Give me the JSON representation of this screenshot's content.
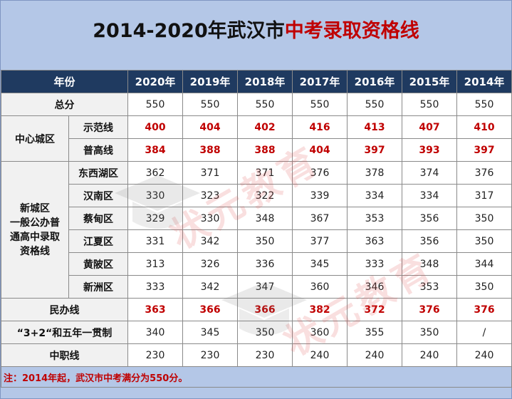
{
  "title": {
    "prefix": "2014-2020年武汉市",
    "highlight": "中考录取资格线"
  },
  "header": {
    "corner": "年份",
    "years": [
      "2020年",
      "2019年",
      "2018年",
      "2017年",
      "2016年",
      "2015年",
      "2014年"
    ]
  },
  "rows": {
    "total": {
      "label": "总分",
      "values": [
        "550",
        "550",
        "550",
        "550",
        "550",
        "550",
        "550"
      ]
    },
    "center_group_label": "中心城区",
    "center": [
      {
        "label": "示范线",
        "values": [
          "400",
          "404",
          "402",
          "416",
          "413",
          "407",
          "410"
        ]
      },
      {
        "label": "普高线",
        "values": [
          "384",
          "388",
          "388",
          "404",
          "397",
          "393",
          "397"
        ]
      }
    ],
    "new_group_label_lines": [
      "新城区",
      "一般公办普",
      "通高中录取",
      "资格线"
    ],
    "new": [
      {
        "label": "东西湖区",
        "values": [
          "362",
          "371",
          "371",
          "376",
          "378",
          "374",
          "376"
        ]
      },
      {
        "label": "汉南区",
        "values": [
          "330",
          "323",
          "322",
          "339",
          "334",
          "334",
          "317"
        ]
      },
      {
        "label": "蔡甸区",
        "values": [
          "329",
          "330",
          "348",
          "367",
          "353",
          "356",
          "350"
        ]
      },
      {
        "label": "江夏区",
        "values": [
          "331",
          "342",
          "350",
          "377",
          "363",
          "356",
          "350"
        ]
      },
      {
        "label": "黄陂区",
        "values": [
          "313",
          "326",
          "336",
          "345",
          "333",
          "348",
          "344"
        ]
      },
      {
        "label": "新洲区",
        "values": [
          "333",
          "342",
          "347",
          "360",
          "346",
          "353",
          "350"
        ]
      }
    ],
    "private": {
      "label": "民办线",
      "values": [
        "363",
        "366",
        "366",
        "382",
        "372",
        "376",
        "376"
      ]
    },
    "five_year": {
      "label": "“3+2“和五年一贯制",
      "values": [
        "340",
        "345",
        "350",
        "360",
        "355",
        "350",
        "/"
      ]
    },
    "vocational": {
      "label": "中职线",
      "values": [
        "230",
        "230",
        "230",
        "240",
        "240",
        "240",
        "240"
      ]
    }
  },
  "note": "注：2014年起，武汉市中考满分为550分。",
  "watermark": "状元教育"
}
